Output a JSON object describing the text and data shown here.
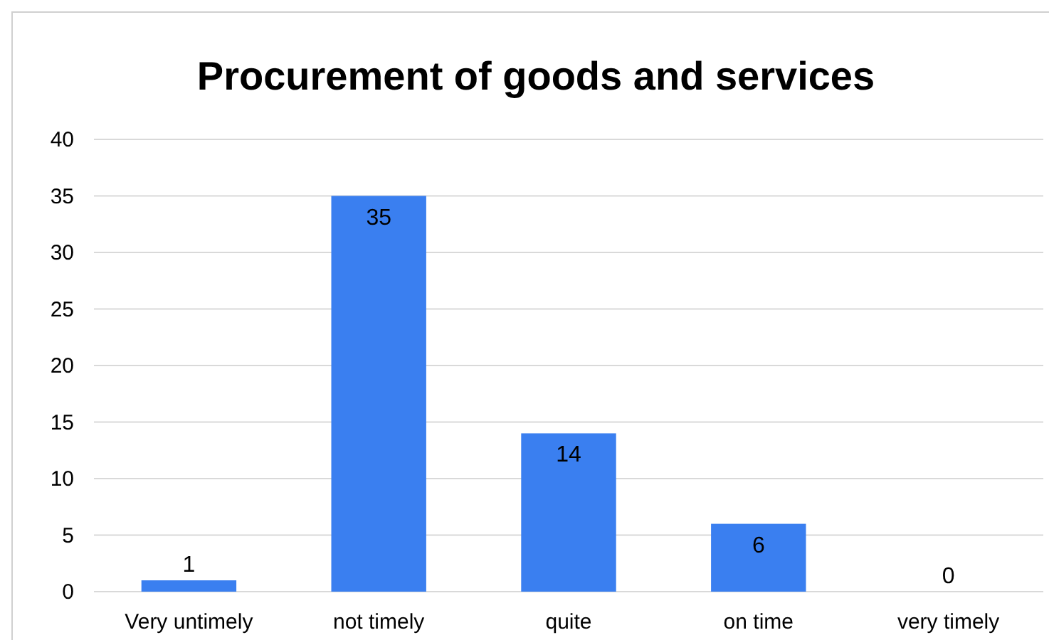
{
  "chart_data": {
    "type": "bar",
    "title": "Procurement of goods and services",
    "categories": [
      "Very untimely",
      "not timely",
      "quite",
      "on time",
      "very timely"
    ],
    "values": [
      1,
      35,
      14,
      6,
      0
    ],
    "color": "#3a7ff0",
    "ylim": [
      0,
      40
    ],
    "yticks": [
      0,
      5,
      10,
      15,
      20,
      25,
      30,
      35,
      40
    ],
    "grid": "y",
    "data_labels": true
  }
}
